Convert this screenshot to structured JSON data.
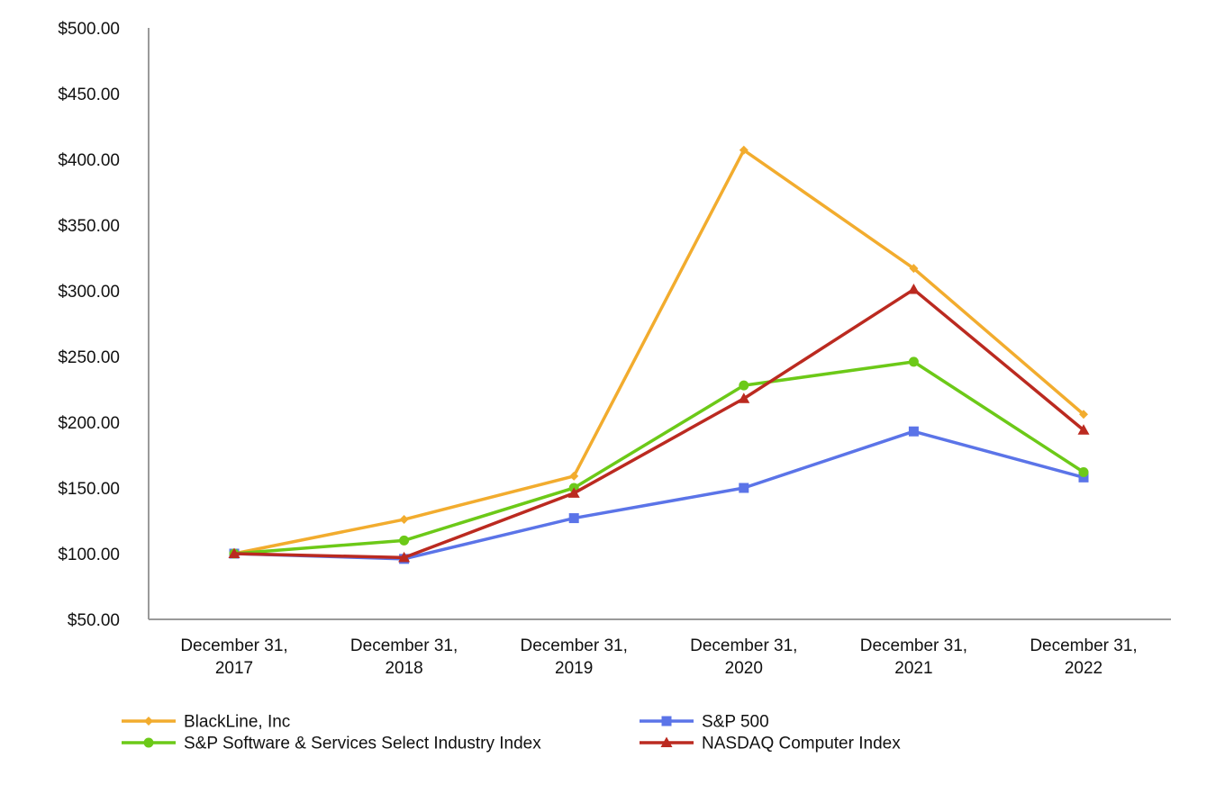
{
  "chart_data": {
    "type": "line",
    "title": "",
    "xlabel": "",
    "ylabel": "",
    "categories": [
      [
        "December 31,",
        "2017"
      ],
      [
        "December 31,",
        "2018"
      ],
      [
        "December 31,",
        "2019"
      ],
      [
        "December 31,",
        "2020"
      ],
      [
        "December 31,",
        "2021"
      ],
      [
        "December 31,",
        "2022"
      ]
    ],
    "ylim": [
      50,
      500
    ],
    "yticks": [
      {
        "value": 50,
        "label": "$50.00"
      },
      {
        "value": 100,
        "label": "$100.00"
      },
      {
        "value": 150,
        "label": "$150.00"
      },
      {
        "value": 200,
        "label": "$200.00"
      },
      {
        "value": 250,
        "label": "$250.00"
      },
      {
        "value": 300,
        "label": "$300.00"
      },
      {
        "value": 350,
        "label": "$350.00"
      },
      {
        "value": 400,
        "label": "$400.00"
      },
      {
        "value": 450,
        "label": "$450.00"
      },
      {
        "value": 500,
        "label": "$500.00"
      }
    ],
    "grid": false,
    "legend_position": "bottom",
    "series": [
      {
        "name": "BlackLine, Inc",
        "color": "#f2ac2e",
        "marker": "diamond",
        "values": [
          100,
          126,
          159,
          407,
          317,
          206
        ]
      },
      {
        "name": "S&P 500",
        "color": "#5b74e8",
        "marker": "square",
        "values": [
          100,
          96,
          127,
          150,
          193,
          158
        ]
      },
      {
        "name": "S&P Software & Services Select Industry Index",
        "color": "#6cc918",
        "marker": "circle",
        "values": [
          100,
          110,
          150,
          228,
          246,
          162
        ]
      },
      {
        "name": "NASDAQ Computer Index",
        "color": "#bb2a20",
        "marker": "triangle",
        "values": [
          100,
          97,
          146,
          218,
          301,
          194
        ]
      }
    ]
  }
}
